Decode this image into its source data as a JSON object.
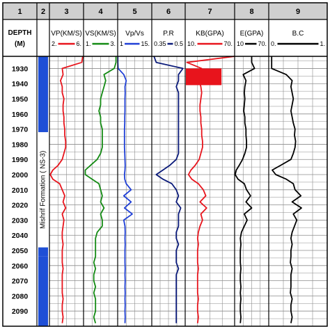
{
  "chart_data": {
    "type": "line",
    "orientation": "vertical-well-log",
    "depth_axis": {
      "label": "DEPTH",
      "unit": "(M)",
      "ticks": [
        1930,
        1940,
        1950,
        1960,
        1970,
        1980,
        1990,
        2000,
        2010,
        2020,
        2030,
        2040,
        2050,
        2060,
        2070,
        2080,
        2090
      ],
      "range": [
        1922,
        2100
      ]
    },
    "column_numbers": [
      "1",
      "2",
      "3",
      "4",
      "5",
      "6",
      "7",
      "8",
      "9"
    ],
    "formation": {
      "label": "Mishrif Formation ( NS-3)",
      "top": 1922,
      "bottom": 2054,
      "color": "#1f4fd6"
    },
    "tracks": [
      {
        "number": "3",
        "name": "VP(KM/S)",
        "min_label": "2.",
        "max_label": "6.",
        "range": [
          2,
          6
        ],
        "color": "#e8141c",
        "depth": [
          1922,
          1926,
          1930,
          1934,
          1938,
          1942,
          1946,
          1950,
          1954,
          1958,
          1962,
          1966,
          1970,
          1974,
          1978,
          1982,
          1986,
          1990,
          1994,
          1997,
          2000,
          2003,
          2006,
          2010,
          2014,
          2018,
          2022,
          2026,
          2030,
          2034,
          2038,
          2042,
          2046,
          2050,
          2054,
          2058,
          2062,
          2066,
          2070,
          2074,
          2078,
          2082,
          2086,
          2090,
          2094,
          2098
        ],
        "values": [
          5.9,
          5.8,
          3.5,
          3.6,
          3.3,
          3.5,
          3.5,
          3.7,
          3.6,
          3.6,
          3.7,
          3.7,
          3.8,
          3.8,
          3.9,
          3.9,
          3.7,
          3.5,
          3.0,
          2.4,
          2.1,
          2.4,
          3.2,
          3.5,
          3.8,
          3.6,
          3.9,
          3.5,
          3.7,
          3.6,
          3.5,
          3.5,
          3.6,
          3.5,
          3.5,
          3.5,
          3.6,
          3.5,
          3.5,
          3.5,
          3.5,
          3.6,
          3.5,
          3.5,
          3.6,
          3.5
        ]
      },
      {
        "number": "4",
        "name": "VS(KM/S)",
        "min_label": "1.",
        "max_label": "3.",
        "range": [
          1,
          3
        ],
        "color": "#138a13",
        "depth": [
          1922,
          1926,
          1930,
          1934,
          1938,
          1942,
          1946,
          1950,
          1954,
          1958,
          1962,
          1966,
          1970,
          1974,
          1978,
          1982,
          1986,
          1990,
          1994,
          1997,
          2000,
          2003,
          2006,
          2010,
          2014,
          2018,
          2022,
          2026,
          2030,
          2034,
          2038,
          2042,
          2046,
          2050,
          2054,
          2058,
          2062,
          2066,
          2070,
          2074,
          2078,
          2082,
          2086,
          2090,
          2094,
          2098
        ],
        "values": [
          2.9,
          2.9,
          2.8,
          2.2,
          2.3,
          2.2,
          2.1,
          2.0,
          2.0,
          1.9,
          2.0,
          2.0,
          2.1,
          2.1,
          2.1,
          2.1,
          2.0,
          1.8,
          1.4,
          1.1,
          1.1,
          1.5,
          1.9,
          2.0,
          2.1,
          2.0,
          2.2,
          2.0,
          2.1,
          2.1,
          1.8,
          1.7,
          1.7,
          1.7,
          1.7,
          1.6,
          1.7,
          1.6,
          1.6,
          1.7,
          1.6,
          1.7,
          1.7,
          1.7,
          1.6,
          1.7
        ]
      },
      {
        "number": "5",
        "name": "Vp/Vs",
        "min_label": "1",
        "max_label": "15.",
        "range": [
          1,
          15
        ],
        "color": "#1f3fd6",
        "depth": [
          1922,
          1926,
          1930,
          1934,
          1938,
          1942,
          1946,
          1950,
          1954,
          1958,
          1962,
          1966,
          1970,
          1974,
          1978,
          1982,
          1986,
          1990,
          1994,
          1997,
          2000,
          2003,
          2006,
          2010,
          2014,
          2018,
          2022,
          2026,
          2030,
          2034,
          2038,
          2042,
          2046,
          2050,
          2054,
          2058,
          2062,
          2066,
          2070,
          2074,
          2078,
          2082,
          2086,
          2090,
          2094,
          2098
        ],
        "values": [
          1.1,
          1.1,
          1.2,
          3.5,
          4.5,
          4.0,
          4.1,
          4.0,
          4.0,
          4.0,
          3.9,
          3.9,
          3.8,
          3.8,
          3.8,
          3.8,
          3.9,
          4.0,
          4.1,
          4.0,
          3.8,
          3.9,
          4.5,
          6.5,
          3.5,
          6.5,
          3.8,
          7.0,
          3.5,
          4.0,
          4.1,
          4.0,
          4.1,
          4.0,
          4.0,
          4.0,
          4.1,
          4.0,
          4.1,
          4.0,
          4.1,
          4.0,
          4.1,
          4.0,
          4.1,
          4.0
        ]
      },
      {
        "number": "6",
        "name": "P.R",
        "min_label": "0.35",
        "max_label": "0.5",
        "range": [
          0.35,
          0.5
        ],
        "color": "#0a1a7a",
        "depth": [
          1922,
          1926,
          1930,
          1934,
          1938,
          1942,
          1946,
          1950,
          1954,
          1958,
          1962,
          1966,
          1970,
          1974,
          1978,
          1982,
          1986,
          1990,
          1994,
          1997,
          2000,
          2003,
          2006,
          2010,
          2014,
          2018,
          2022,
          2026,
          2030,
          2034,
          2038,
          2042,
          2046,
          2050,
          2054,
          2058,
          2062,
          2066,
          2070,
          2074,
          2078,
          2082,
          2086,
          2090,
          2094,
          2098
        ],
        "values": [
          0.36,
          0.37,
          0.49,
          0.47,
          0.47,
          0.46,
          0.47,
          0.47,
          0.47,
          0.47,
          0.47,
          0.47,
          0.47,
          0.47,
          0.47,
          0.47,
          0.47,
          0.46,
          0.43,
          0.4,
          0.37,
          0.4,
          0.44,
          0.46,
          0.47,
          0.46,
          0.48,
          0.47,
          0.47,
          0.47,
          0.46,
          0.46,
          0.47,
          0.46,
          0.46,
          0.46,
          0.47,
          0.46,
          0.46,
          0.46,
          0.46,
          0.46,
          0.46,
          0.46,
          0.46,
          0.46
        ]
      },
      {
        "number": "7",
        "name": "KB(GPA)",
        "min_label": "10.",
        "max_label": "70.",
        "range": [
          10,
          70
        ],
        "color": "#e8141c",
        "depth": [
          1922,
          1926,
          1930,
          1934,
          1938,
          1942,
          1946,
          1950,
          1954,
          1958,
          1962,
          1966,
          1970,
          1974,
          1978,
          1982,
          1986,
          1990,
          1994,
          1997,
          2000,
          2003,
          2006,
          2010,
          2014,
          2018,
          2022,
          2026,
          2030,
          2034,
          2038,
          2042,
          2046,
          2050,
          2054,
          2058,
          2062,
          2066,
          2070,
          2074,
          2078,
          2082,
          2086,
          2090,
          2094,
          2098
        ],
        "values": [
          70,
          12,
          30,
          28,
          27,
          29,
          30,
          29,
          28,
          28,
          29,
          29,
          30,
          30,
          31,
          31,
          29,
          27,
          22,
          17,
          14,
          18,
          26,
          32,
          35,
          28,
          36,
          29,
          31,
          28,
          26,
          25,
          26,
          25,
          25,
          25,
          26,
          25,
          25,
          25,
          25,
          26,
          25,
          25,
          26,
          25
        ],
        "fill_band": {
          "top": 1930,
          "bottom": 1941
        }
      },
      {
        "number": "8",
        "name": "E(GPA)",
        "min_label": "10",
        "max_label": "70.",
        "range": [
          10,
          70
        ],
        "color": "#000000",
        "depth": [
          1922,
          1926,
          1930,
          1934,
          1938,
          1942,
          1946,
          1950,
          1954,
          1958,
          1962,
          1966,
          1970,
          1974,
          1978,
          1982,
          1986,
          1990,
          1994,
          1997,
          2000,
          2003,
          2006,
          2010,
          2014,
          2018,
          2022,
          2026,
          2030,
          2034,
          2038,
          2042,
          2046,
          2050,
          2054,
          2058,
          2062,
          2066,
          2070,
          2074,
          2078,
          2082,
          2086,
          2090,
          2094,
          2098
        ],
        "values": [
          40,
          40,
          45,
          25,
          30,
          28,
          27,
          28,
          27,
          26,
          28,
          28,
          30,
          30,
          31,
          31,
          28,
          24,
          18,
          13,
          11,
          16,
          27,
          31,
          38,
          30,
          40,
          27,
          32,
          27,
          22,
          20,
          21,
          20,
          20,
          20,
          21,
          20,
          20,
          21,
          20,
          21,
          20,
          20,
          21,
          20
        ]
      },
      {
        "number": "9",
        "name": "B.C",
        "min_label": "0.",
        "max_label": "1.",
        "range": [
          0,
          1
        ],
        "color": "#000000",
        "depth": [
          1922,
          1926,
          1930,
          1934,
          1938,
          1942,
          1946,
          1950,
          1954,
          1958,
          1962,
          1966,
          1970,
          1974,
          1978,
          1982,
          1986,
          1990,
          1994,
          1997,
          2000,
          2003,
          2006,
          2010,
          2014,
          2018,
          2022,
          2026,
          2030,
          2034,
          2038,
          2042,
          2046,
          2050,
          2054,
          2058,
          2062,
          2066,
          2070,
          2074,
          2078,
          2082,
          2086,
          2090,
          2094,
          2098
        ],
        "values": [
          0.05,
          0.05,
          0.05,
          0.3,
          0.4,
          0.38,
          0.4,
          0.42,
          0.4,
          0.38,
          0.4,
          0.42,
          0.45,
          0.44,
          0.46,
          0.45,
          0.42,
          0.38,
          0.2,
          0.06,
          0.12,
          0.3,
          0.42,
          0.45,
          0.55,
          0.4,
          0.56,
          0.42,
          0.48,
          0.44,
          0.4,
          0.38,
          0.4,
          0.38,
          0.38,
          0.37,
          0.4,
          0.38,
          0.38,
          0.38,
          0.37,
          0.4,
          0.38,
          0.38,
          0.4,
          0.38
        ]
      }
    ]
  }
}
